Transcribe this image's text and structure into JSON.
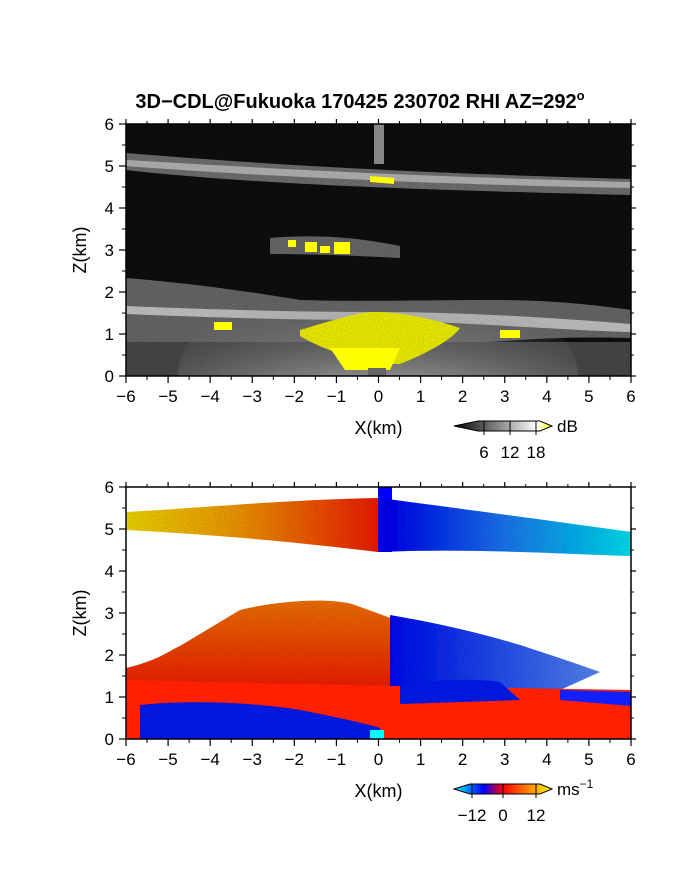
{
  "figure": {
    "title": "3D−CDL@Fukuoka 170425 230702 RHI AZ=292",
    "title_superscript": "o"
  },
  "chart_data": [
    {
      "type": "heatmap",
      "name": "reflectivity",
      "xlabel": "X(km)",
      "ylabel": "Z(km)",
      "xlim": [
        -6,
        6
      ],
      "ylim": [
        0,
        6
      ],
      "xticks": [
        "−6",
        "−5",
        "−4",
        "−3",
        "−2",
        "−1",
        "0",
        "1",
        "2",
        "3",
        "4",
        "5",
        "6"
      ],
      "yticks": [
        "0",
        "1",
        "2",
        "3",
        "4",
        "5",
        "6"
      ],
      "colorbar": {
        "unit": "dB",
        "ticks": [
          "6",
          "12",
          "18"
        ],
        "range": [
          0,
          20
        ],
        "colors": [
          "#000000",
          "#ffffff",
          "#ffff00"
        ]
      },
      "features": [
        {
          "label": "upper layer",
          "z_km": 5.1,
          "x_from": -6,
          "x_to": 6,
          "level_db": 12
        },
        {
          "label": "mid layer",
          "z_km": 2.7,
          "x_from": -3.5,
          "x_to": 0.5,
          "level_db": 9
        },
        {
          "label": "lower layer",
          "z_km": 1.3,
          "x_from": -6,
          "x_to": 6,
          "level_db": 11
        },
        {
          "label": "strong echo near radar",
          "z_km": 0.8,
          "x_from": -0.9,
          "x_to": 1.9,
          "level_db": 20
        },
        {
          "label": "strong echo",
          "z_km": 4.65,
          "x_from": -0.1,
          "x_to": 0.5,
          "level_db": 20
        },
        {
          "label": "strong echo",
          "z_km": 3.1,
          "x_from": -2.1,
          "x_to": -0.6,
          "level_db": 20
        },
        {
          "label": "strong echo",
          "z_km": 1.0,
          "x_from": 3.0,
          "x_to": 3.4,
          "level_db": 20
        },
        {
          "label": "strong echo",
          "z_km": 1.2,
          "x_from": -3.8,
          "x_to": -3.5,
          "level_db": 20
        }
      ]
    },
    {
      "type": "heatmap",
      "name": "doppler velocity",
      "xlabel": "X(km)",
      "ylabel": "Z(km)",
      "xlim": [
        -6,
        6
      ],
      "ylim": [
        0,
        6
      ],
      "xticks": [
        "−6",
        "−5",
        "−4",
        "−3",
        "−2",
        "−1",
        "0",
        "1",
        "2",
        "3",
        "4",
        "5",
        "6"
      ],
      "yticks": [
        "0",
        "1",
        "2",
        "3",
        "4",
        "5",
        "6"
      ],
      "colorbar": {
        "unit": "ms",
        "unit_superscript": "−1",
        "ticks": [
          "−12",
          "0",
          "12"
        ],
        "range": [
          -16,
          16
        ],
        "colors": [
          "#00ffff",
          "#0000ff",
          "#ff0000",
          "#ffff00"
        ]
      },
      "features": [
        {
          "label": "upper layer, x<0",
          "z_km": 5.1,
          "x_from": -6,
          "x_to": 0,
          "velocity_ms": [
            14,
            6
          ]
        },
        {
          "label": "upper layer, x>0",
          "z_km": 4.8,
          "x_from": 0,
          "x_to": 6,
          "velocity_ms": [
            -6,
            -14
          ]
        },
        {
          "label": "mid/lower layer, x<0",
          "z_km": 1.8,
          "x_from": -6,
          "x_to": 0.5,
          "velocity_ms": [
            8,
            2
          ]
        },
        {
          "label": "mid/lower layer, x>0",
          "z_km": 1.7,
          "x_from": 0.5,
          "x_to": 5,
          "velocity_ms": [
            -4,
            -8
          ]
        },
        {
          "label": "near-surface, x<0",
          "z_km": 0.5,
          "x_from": -6,
          "x_to": 0,
          "velocity_ms": [
            -4,
            -4
          ]
        },
        {
          "label": "near-surface, x>0",
          "z_km": 0.6,
          "x_from": 1,
          "x_to": 6,
          "velocity_ms": [
            3,
            3
          ]
        }
      ]
    }
  ]
}
